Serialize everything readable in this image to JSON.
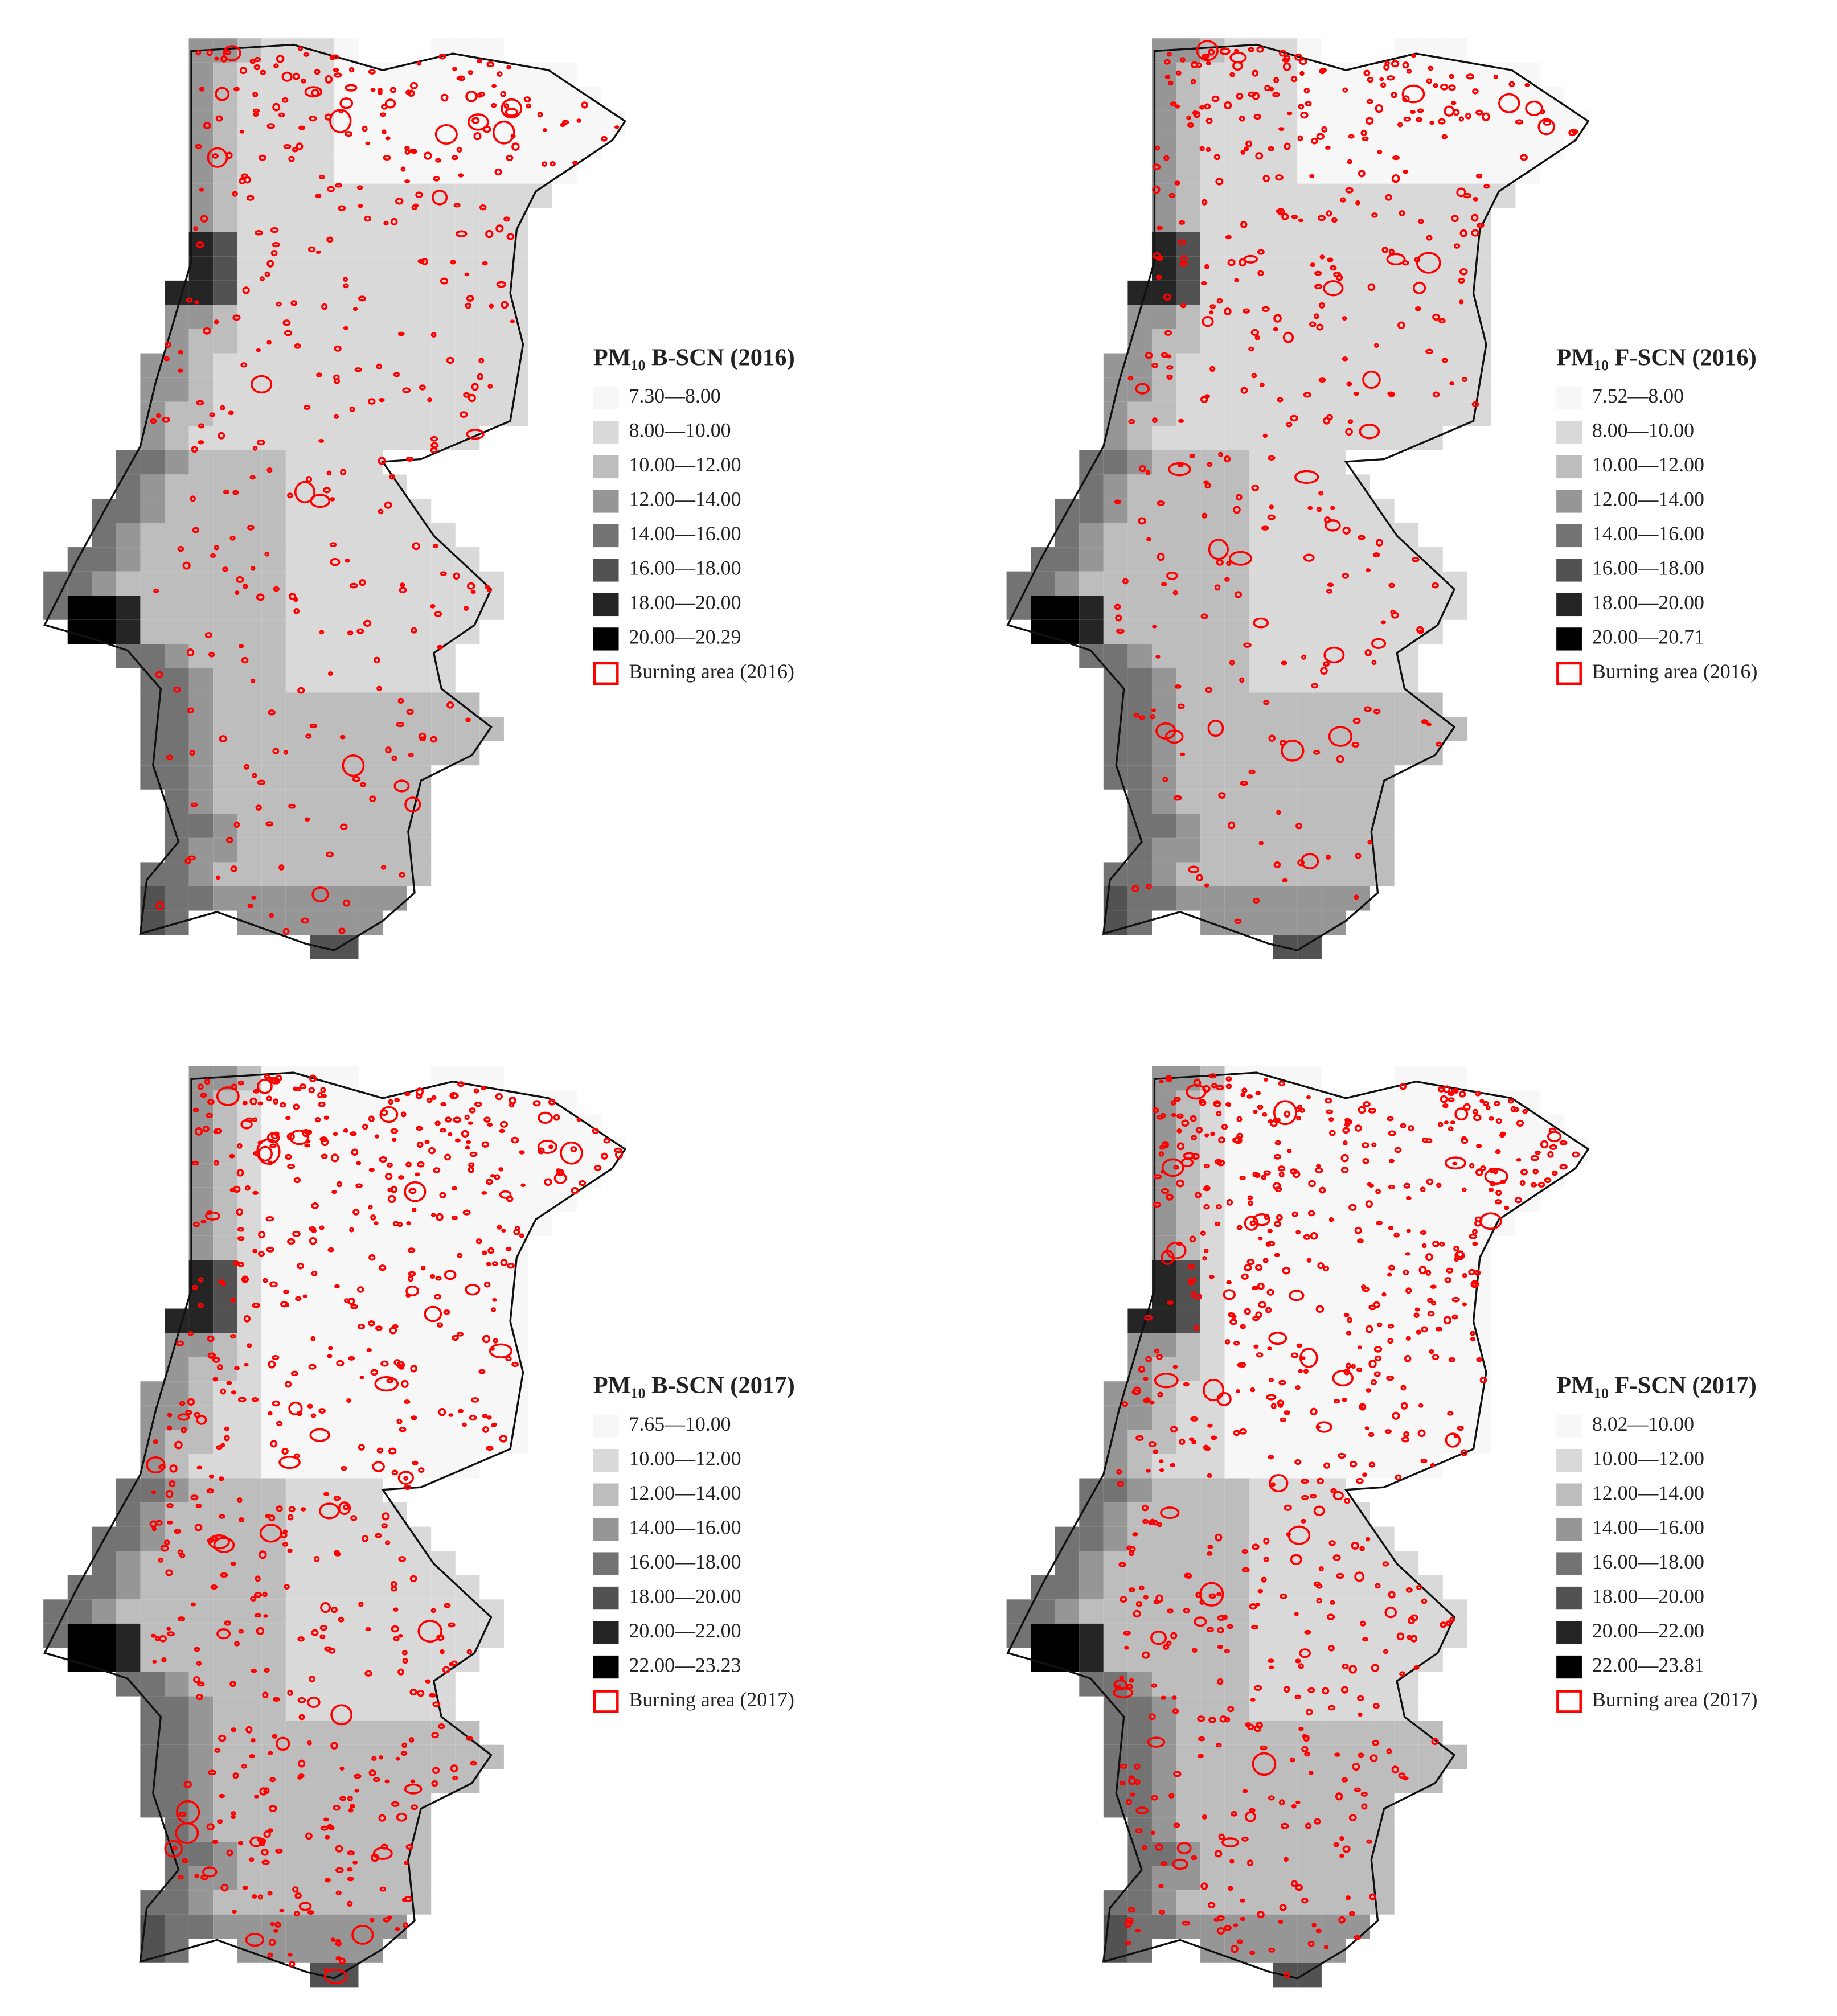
{
  "panels": [
    {
      "title": "PM₁₀ B-SCN (2016)",
      "legend": [
        {
          "label": "7.30—8.00",
          "color": "#f7f7f7"
        },
        {
          "label": "8.00—10.00",
          "color": "#d9d9d9"
        },
        {
          "label": "10.00—12.00",
          "color": "#bdbdbd"
        },
        {
          "label": "12.00—14.00",
          "color": "#969696"
        },
        {
          "label": "14.00—16.00",
          "color": "#737373"
        },
        {
          "label": "16.00—18.00",
          "color": "#525252"
        },
        {
          "label": "18.00—20.00",
          "color": "#252525"
        },
        {
          "label": "20.00—20.29",
          "color": "#000000"
        }
      ],
      "burning_label": "Burning area (2016)",
      "burning_color": "#ff0000"
    },
    {
      "title": "PM₁₀ F-SCN (2016)",
      "legend": [
        {
          "label": "7.52—8.00",
          "color": "#f7f7f7"
        },
        {
          "label": "8.00—10.00",
          "color": "#d9d9d9"
        },
        {
          "label": "10.00—12.00",
          "color": "#bdbdbd"
        },
        {
          "label": "12.00—14.00",
          "color": "#969696"
        },
        {
          "label": "14.00—16.00",
          "color": "#737373"
        },
        {
          "label": "16.00—18.00",
          "color": "#525252"
        },
        {
          "label": "18.00—20.00",
          "color": "#252525"
        },
        {
          "label": "20.00—20.71",
          "color": "#000000"
        }
      ],
      "burning_label": "Burning area (2016)",
      "burning_color": "#ff0000"
    },
    {
      "title": "PM₁₀ B-SCN (2017)",
      "legend": [
        {
          "label": "7.65—10.00",
          "color": "#f7f7f7"
        },
        {
          "label": "10.00—12.00",
          "color": "#d9d9d9"
        },
        {
          "label": "12.00—14.00",
          "color": "#bdbdbd"
        },
        {
          "label": "14.00—16.00",
          "color": "#969696"
        },
        {
          "label": "16.00—18.00",
          "color": "#737373"
        },
        {
          "label": "18.00—20.00",
          "color": "#525252"
        },
        {
          "label": "20.00—22.00",
          "color": "#252525"
        },
        {
          "label": "22.00—23.23",
          "color": "#000000"
        }
      ],
      "burning_label": "Burning area (2017)",
      "burning_color": "#ff0000"
    },
    {
      "title": "PM₁₀ F-SCN (2017)",
      "legend": [
        {
          "label": "8.02—10.00",
          "color": "#f7f7f7"
        },
        {
          "label": "10.00—12.00",
          "color": "#d9d9d9"
        },
        {
          "label": "12.00—14.00",
          "color": "#bdbdbd"
        },
        {
          "label": "14.00—16.00",
          "color": "#969696"
        },
        {
          "label": "16.00—18.00",
          "color": "#737373"
        },
        {
          "label": "18.00—20.00",
          "color": "#525252"
        },
        {
          "label": "20.00—22.00",
          "color": "#252525"
        },
        {
          "label": "22.00—23.81",
          "color": "#000000"
        }
      ],
      "burning_label": "Burning area (2017)",
      "burning_color": "#ff0000"
    }
  ]
}
